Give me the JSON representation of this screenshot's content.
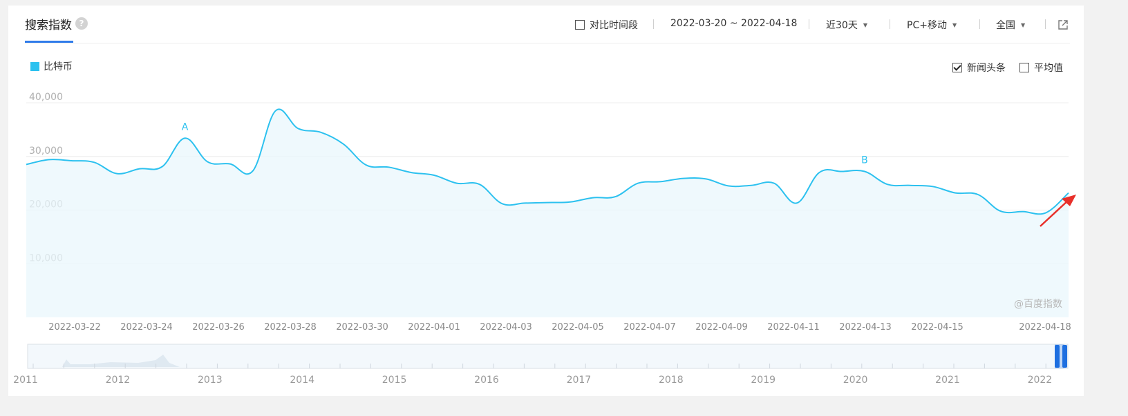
{
  "header": {
    "title": "搜索指数",
    "help_icon": "question-circle-icon",
    "compare_label": "对比时间段",
    "date_range": "2022-03-20 ~ 2022-04-18",
    "period": "近30天",
    "device": "PC+移动",
    "region": "全国",
    "share_icon": "external-link-icon"
  },
  "options": {
    "news_label": "新闻头条",
    "news_checked": true,
    "avg_label": "平均值",
    "avg_checked": false
  },
  "legend": {
    "label": "比特币",
    "color": "#2cc1ef"
  },
  "watermark": "@百度指数",
  "chart_data": {
    "type": "line",
    "series": [
      {
        "name": "比特币",
        "color": "#2cc1ef",
        "values": [
          28500,
          29400,
          29200,
          28900,
          26800,
          27700,
          28100,
          33400,
          29000,
          28600,
          27300,
          38500,
          35200,
          34500,
          32300,
          28400,
          28000,
          27000,
          26500,
          25000,
          24800,
          21200,
          21300,
          21400,
          21500,
          22300,
          22500,
          25000,
          25300,
          25900,
          25800,
          24500,
          24600,
          25000,
          21300,
          27000,
          27200,
          27200,
          24800,
          24600,
          24400,
          23200,
          22900,
          19800,
          19700,
          19500,
          23200
        ]
      }
    ],
    "x_ticks": [
      "2022-03-22",
      "2022-03-24",
      "2022-03-26",
      "2022-03-28",
      "2022-03-30",
      "2022-04-01",
      "2022-04-03",
      "2022-04-05",
      "2022-04-07",
      "2022-04-09",
      "2022-04-11",
      "2022-04-13",
      "2022-04-15",
      "2022-04-18"
    ],
    "y_ticks": [
      "10,000",
      "20,000",
      "30,000",
      "40,000"
    ],
    "ylim": [
      0,
      40000
    ],
    "annotations": [
      {
        "label": "A",
        "series_index": 7
      },
      {
        "label": "B",
        "series_index": 37
      }
    ],
    "grid": true
  },
  "overview": {
    "years": [
      "2011",
      "2012",
      "2013",
      "2014",
      "2015",
      "2016",
      "2017",
      "2018",
      "2019",
      "2020",
      "2021",
      "2022"
    ]
  }
}
